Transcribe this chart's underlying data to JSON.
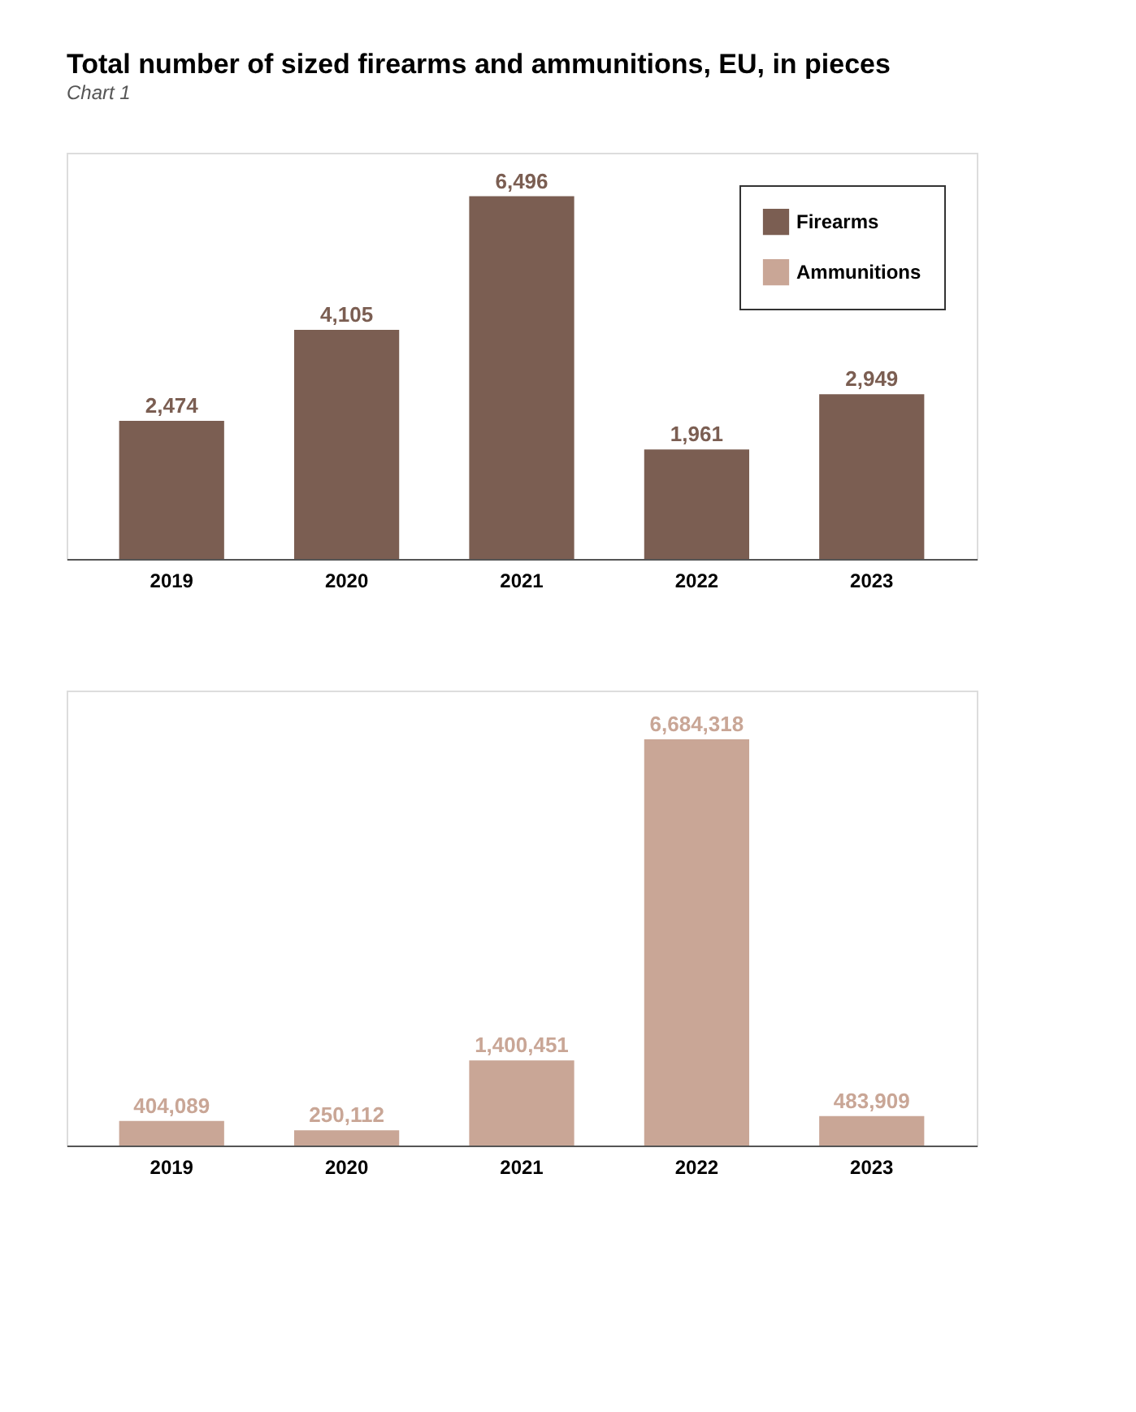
{
  "chart_data": [
    {
      "type": "bar",
      "title": "Total number of sized firearms and ammunitions, EU, in pieces",
      "subtitle": "Chart 1",
      "categories": [
        "2019",
        "2020",
        "2021",
        "2022",
        "2023"
      ],
      "series": [
        {
          "name": "Firearms",
          "color": "#7b5e52",
          "values": [
            2474,
            4105,
            6496,
            1961,
            2949
          ],
          "value_labels": [
            "2,474",
            "4,105",
            "6,496",
            "1,961",
            "2,949"
          ]
        }
      ],
      "data_labels": true,
      "legend": "top right",
      "grid": false
    },
    {
      "type": "bar",
      "categories": [
        "2019",
        "2020",
        "2021",
        "2022",
        "2023"
      ],
      "series": [
        {
          "name": "Ammunitions",
          "color": "#c9a696",
          "values": [
            404089,
            250112,
            1400451,
            6684318,
            483909
          ],
          "value_labels": [
            "404,089",
            "250,112",
            "1,400,451",
            "6,684,318",
            "483,909"
          ]
        }
      ],
      "data_labels": true,
      "legend": "top right",
      "grid": false
    }
  ]
}
